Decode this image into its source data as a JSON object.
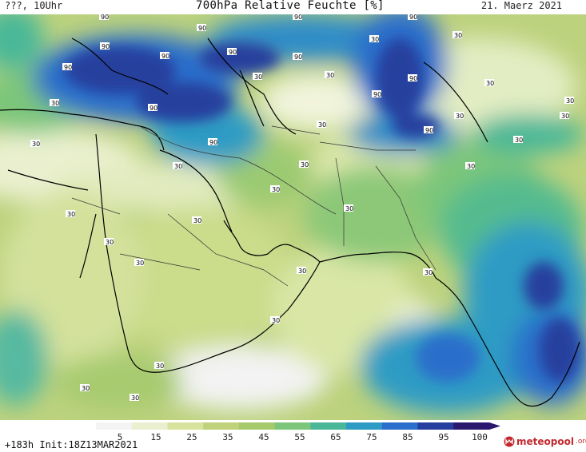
{
  "header": {
    "left": "???, 10Uhr",
    "title": "700hPa Relative Feuchte [%]",
    "date": "21. Maerz 2021"
  },
  "footer": {
    "run_info": "+183h Init:18Z13MAR2021",
    "logo_main": "meteopool",
    "logo_suffix": ".org"
  },
  "colorbar": {
    "labels": [
      "5",
      "15",
      "25",
      "35",
      "45",
      "55",
      "65",
      "75",
      "85",
      "95",
      "100"
    ],
    "colors": [
      "#f4f4f4",
      "#eaf0cf",
      "#d7e39c",
      "#bfd27a",
      "#a6c96c",
      "#7cc67a",
      "#4ab898",
      "#2e9bc4",
      "#2c6ecb",
      "#263f9e",
      "#2a176e"
    ]
  },
  "contour_labels": [
    "90",
    "30"
  ]
}
